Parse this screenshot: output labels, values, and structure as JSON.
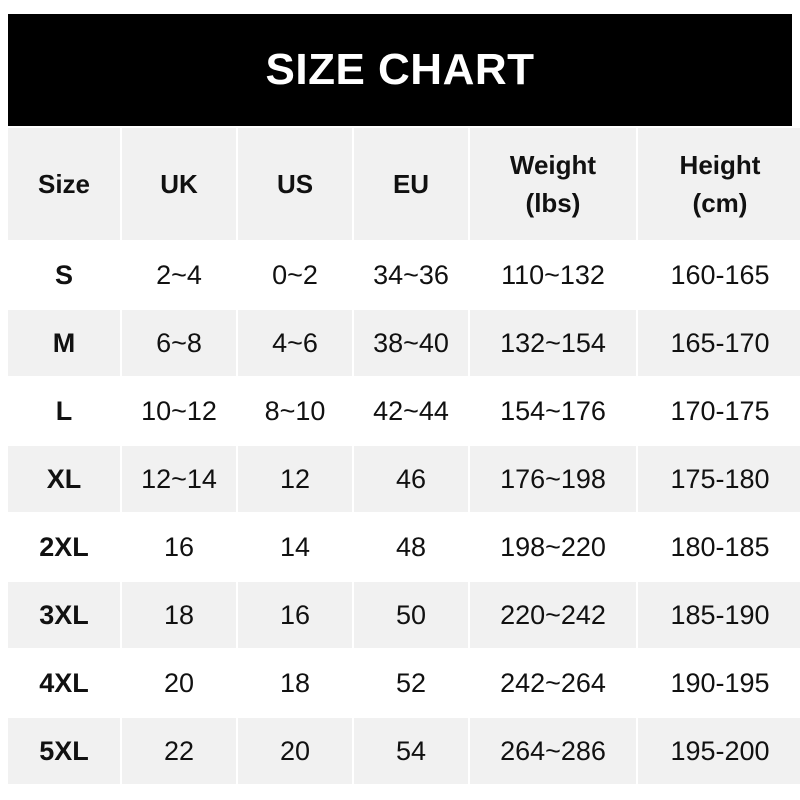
{
  "title": "SIZE CHART",
  "headers": [
    {
      "line1": "Size",
      "line2": ""
    },
    {
      "line1": "UK",
      "line2": ""
    },
    {
      "line1": "US",
      "line2": ""
    },
    {
      "line1": "EU",
      "line2": ""
    },
    {
      "line1": "Weight",
      "line2": "(lbs)"
    },
    {
      "line1": "Height",
      "line2": "(cm)"
    }
  ],
  "rows": [
    [
      "S",
      "2~4",
      "0~2",
      "34~36",
      "110~132",
      "160-165"
    ],
    [
      "M",
      "6~8",
      "4~6",
      "38~40",
      "132~154",
      "165-170"
    ],
    [
      "L",
      "10~12",
      "8~10",
      "42~44",
      "154~176",
      "170-175"
    ],
    [
      "XL",
      "12~14",
      "12",
      "46",
      "176~198",
      "175-180"
    ],
    [
      "2XL",
      "16",
      "14",
      "48",
      "198~220",
      "180-185"
    ],
    [
      "3XL",
      "18",
      "16",
      "50",
      "220~242",
      "185-190"
    ],
    [
      "4XL",
      "20",
      "18",
      "52",
      "242~264",
      "190-195"
    ],
    [
      "5XL",
      "22",
      "20",
      "54",
      "264~286",
      "195-200"
    ]
  ]
}
